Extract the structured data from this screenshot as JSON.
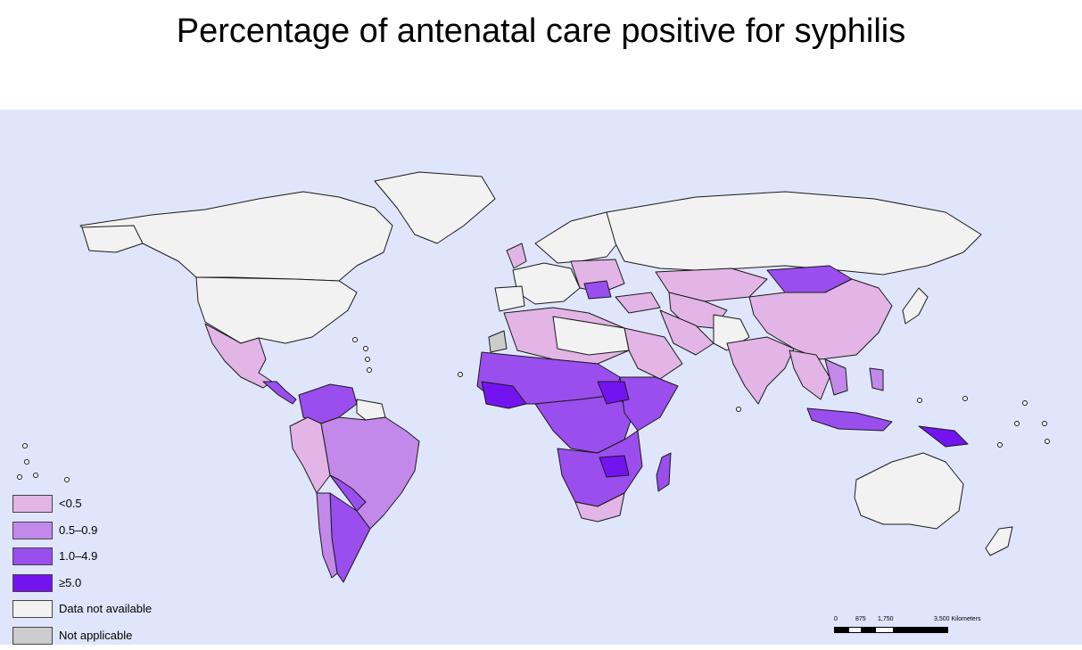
{
  "title": "Percentage of antenatal care positive for syphilis",
  "colors": {
    "ocean": "#dfe6fb",
    "lt_0_5": "#e2b5e6",
    "c_0_5_0_9": "#c288ea",
    "c_1_0_4_9": "#9a4eee",
    "ge_5_0": "#7314f0",
    "not_available": "#f2f2f2",
    "not_applicable": "#cccccc"
  },
  "legend": [
    {
      "label": "<0.5",
      "color": "#e2b5e6"
    },
    {
      "label": "0.5–0.9",
      "color": "#c288ea"
    },
    {
      "label": "1.0–4.9",
      "color": "#9a4eee"
    },
    {
      "label": "≥5.0",
      "color": "#7314f0"
    },
    {
      "label": "Data not available",
      "color": "#f2f2f2"
    },
    {
      "label": "Not applicable",
      "color": "#cccccc"
    }
  ],
  "scale": {
    "ticks": [
      "0",
      "875",
      "1,750",
      "3,500 Kilometers"
    ]
  }
}
